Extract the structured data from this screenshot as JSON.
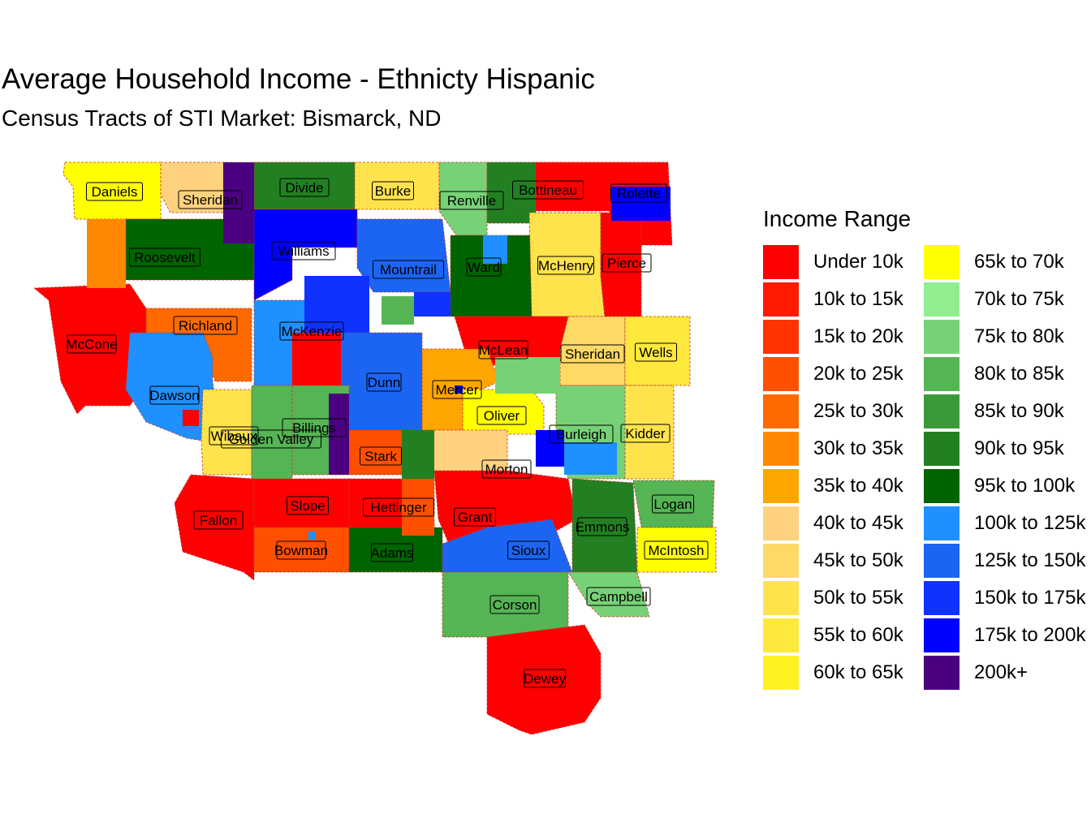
{
  "title": "Average Household Income - Ethnicty Hispanic",
  "subtitle": "Census Tracts of STI Market: Bismarck, ND",
  "legend": {
    "title": "Income Range",
    "items": [
      {
        "label": "Under 10k",
        "color": "#FF0000"
      },
      {
        "label": "10k to 15k",
        "color": "#FF1A00"
      },
      {
        "label": "15k to 20k",
        "color": "#FF3300"
      },
      {
        "label": "20k to 25k",
        "color": "#FF5000"
      },
      {
        "label": "25k to 30k",
        "color": "#FF6A00"
      },
      {
        "label": "30k to 35k",
        "color": "#FF8800"
      },
      {
        "label": "35k to 40k",
        "color": "#FFA500"
      },
      {
        "label": "40k to 45k",
        "color": "#FFD27F"
      },
      {
        "label": "45k to 50k",
        "color": "#FFD966"
      },
      {
        "label": "50k to 55k",
        "color": "#FFE34D"
      },
      {
        "label": "55k to 60k",
        "color": "#FFE83C"
      },
      {
        "label": "60k to 65k",
        "color": "#FFF220"
      },
      {
        "label": "65k to 70k",
        "color": "#FFFF00"
      },
      {
        "label": "70k to 75k",
        "color": "#90EE90"
      },
      {
        "label": "75k to 80k",
        "color": "#77D277"
      },
      {
        "label": "80k to 85k",
        "color": "#55B555"
      },
      {
        "label": "85k to 90k",
        "color": "#3A9A3A"
      },
      {
        "label": "90k to 95k",
        "color": "#228022"
      },
      {
        "label": "95k to 100k",
        "color": "#006400"
      },
      {
        "label": "100k to 125k",
        "color": "#1E90FF"
      },
      {
        "label": "125k to 150k",
        "color": "#1C64F2"
      },
      {
        "label": "150k to 175k",
        "color": "#0F32FF"
      },
      {
        "label": "175k to 200k",
        "color": "#0000FF"
      },
      {
        "label": "200k+",
        "color": "#4B0082"
      }
    ]
  },
  "counties": [
    {
      "name": "Daniels",
      "color": "#FFFF00"
    },
    {
      "name": "Sheridan",
      "color": "#FFD27F"
    },
    {
      "name": "Divide",
      "color": "#228022"
    },
    {
      "name": "Burke",
      "color": "#FFE34D"
    },
    {
      "name": "Renville",
      "color": "#77D277"
    },
    {
      "name": "Bottineau",
      "color": "#228022"
    },
    {
      "name": "Rolette",
      "color": "#FF0000"
    },
    {
      "name": "Roosevelt",
      "color": "#006400"
    },
    {
      "name": "Williams",
      "color": "#0000FF"
    },
    {
      "name": "Mountrail",
      "color": "#1C64F2"
    },
    {
      "name": "Ward",
      "color": "#006400"
    },
    {
      "name": "McHenry",
      "color": "#FFE34D"
    },
    {
      "name": "Pierce",
      "color": "#FF0000"
    },
    {
      "name": "McCone",
      "color": "#FF0000"
    },
    {
      "name": "Richland",
      "color": "#FF6A00"
    },
    {
      "name": "McKenzie",
      "color": "#1E90FF"
    },
    {
      "name": "McLean",
      "color": "#FF0000"
    },
    {
      "name": "Sheridan",
      "color": "#FFD966"
    },
    {
      "name": "Wells",
      "color": "#FFE83C"
    },
    {
      "name": "Dawson",
      "color": "#1E90FF"
    },
    {
      "name": "Dunn",
      "color": "#1C64F2"
    },
    {
      "name": "Mercer",
      "color": "#FFA500"
    },
    {
      "name": "Oliver",
      "color": "#FFFF00"
    },
    {
      "name": "Billings",
      "color": "#55B555"
    },
    {
      "name": "Wibaux",
      "color": "#FFE34D"
    },
    {
      "name": "Golden Valley",
      "color": "#55B555"
    },
    {
      "name": "Stark",
      "color": "#FF5000"
    },
    {
      "name": "Burleigh",
      "color": "#77D277"
    },
    {
      "name": "Kidder",
      "color": "#FFE34D"
    },
    {
      "name": "Morton",
      "color": "#FFD27F"
    },
    {
      "name": "Fallon",
      "color": "#FF0000"
    },
    {
      "name": "Slope",
      "color": "#FF0000"
    },
    {
      "name": "Hettinger",
      "color": "#FF0000"
    },
    {
      "name": "Grant",
      "color": "#FF0000"
    },
    {
      "name": "Emmons",
      "color": "#228022"
    },
    {
      "name": "Logan",
      "color": "#55B555"
    },
    {
      "name": "Bowman",
      "color": "#FF5000"
    },
    {
      "name": "Adams",
      "color": "#006400"
    },
    {
      "name": "Sioux",
      "color": "#1C64F2"
    },
    {
      "name": "McIntosh",
      "color": "#FFFF00"
    },
    {
      "name": "Corson",
      "color": "#55B555"
    },
    {
      "name": "Campbell",
      "color": "#77D277"
    },
    {
      "name": "Dewey",
      "color": "#FF0000"
    }
  ]
}
